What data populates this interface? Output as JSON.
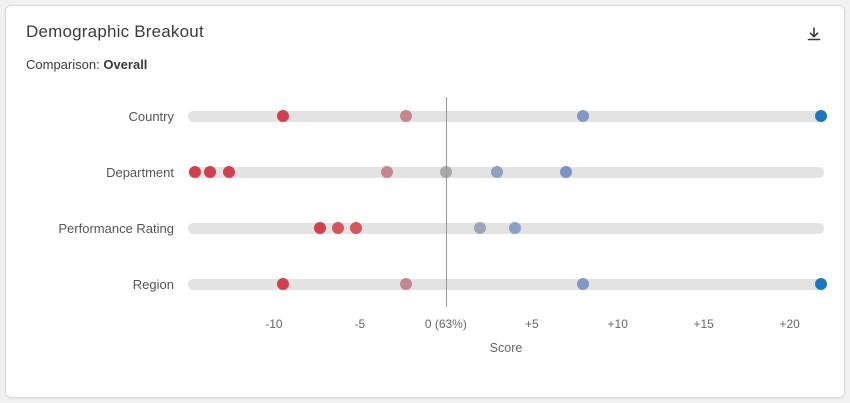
{
  "header": {
    "title": "Demographic Breakout"
  },
  "comparison": {
    "label": "Comparison:",
    "value": "Overall"
  },
  "chart_data": {
    "type": "scatter",
    "variant": "horizontal-dot-plot",
    "title": "Demographic Breakout",
    "xlabel": "Score",
    "ylabel": "",
    "xlim": [
      -15,
      22
    ],
    "zero_value": 0,
    "zero_label": "0 (63%)",
    "grid": false,
    "x_ticks": [
      {
        "value": -10,
        "label": "-10"
      },
      {
        "value": -5,
        "label": "-5"
      },
      {
        "value": 0,
        "label": "0 (63%)"
      },
      {
        "value": 5,
        "label": "+5"
      },
      {
        "value": 10,
        "label": "+10"
      },
      {
        "value": 15,
        "label": "+15"
      },
      {
        "value": 20,
        "label": "+20"
      }
    ],
    "colors": {
      "strong_negative": "#d23f4e",
      "weak_negative": "#c5878e",
      "neutral": "#a7a9ab",
      "weak_positive": "#8399c5",
      "strong_positive": "#1b78bf",
      "track": "#e3e3e4",
      "zero_line": "#9a9a9a"
    },
    "rows": [
      {
        "category": "Country",
        "points": [
          {
            "value": -9.5,
            "color": "#d23f4e"
          },
          {
            "value": -2.3,
            "color": "#c5878e"
          },
          {
            "value": 8,
            "color": "#8399c5"
          },
          {
            "value": 21.8,
            "color": "#1b78bf"
          }
        ]
      },
      {
        "category": "Department",
        "points": [
          {
            "value": -14.6,
            "color": "#d23f4e"
          },
          {
            "value": -13.7,
            "color": "#d23f4e"
          },
          {
            "value": -12.6,
            "color": "#d23f4e"
          },
          {
            "value": -3.4,
            "color": "#c5878e"
          },
          {
            "value": 0,
            "color": "#a7a9ab"
          },
          {
            "value": 3,
            "color": "#8fa0c0"
          },
          {
            "value": 7,
            "color": "#7b94c8"
          }
        ]
      },
      {
        "category": "Performance Rating",
        "points": [
          {
            "value": -7.3,
            "color": "#d23f4e"
          },
          {
            "value": -6.3,
            "color": "#d5555c"
          },
          {
            "value": -5.2,
            "color": "#d5555c"
          },
          {
            "value": 2,
            "color": "#9ba6b8"
          },
          {
            "value": 4,
            "color": "#8ba0c6"
          }
        ]
      },
      {
        "category": "Region",
        "points": [
          {
            "value": -9.5,
            "color": "#d23f4e"
          },
          {
            "value": -2.3,
            "color": "#c5878e"
          },
          {
            "value": 8,
            "color": "#8399c5"
          },
          {
            "value": 21.8,
            "color": "#1b78bf"
          }
        ]
      }
    ]
  }
}
